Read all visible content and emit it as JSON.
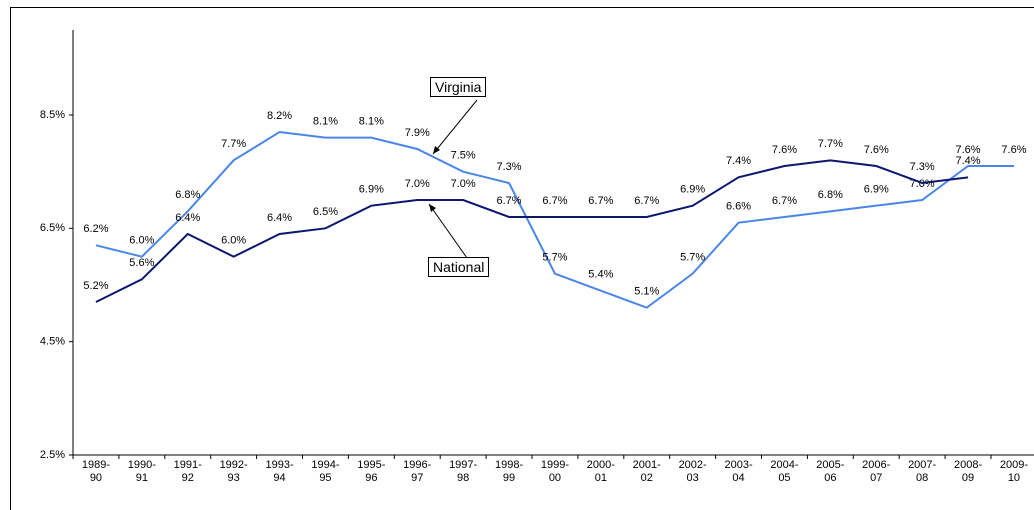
{
  "chart_data": {
    "type": "line",
    "categories": [
      "1989-90",
      "1990-91",
      "1991-92",
      "1992-93",
      "1993-94",
      "1994-95",
      "1995-96",
      "1996-97",
      "1997-98",
      "1998-99",
      "1999-00",
      "2000-01",
      "2001-02",
      "2002-03",
      "2003-04",
      "2004-05",
      "2005-06",
      "2006-07",
      "2007-08",
      "2008-09",
      "2009-10"
    ],
    "series": [
      {
        "name": "Virginia",
        "color": "#4a86e8",
        "values": [
          6.2,
          6.0,
          6.8,
          7.7,
          8.2,
          8.1,
          8.1,
          7.9,
          7.5,
          7.3,
          5.7,
          5.4,
          5.1,
          5.7,
          6.6,
          6.7,
          6.8,
          6.9,
          7.0,
          7.6,
          7.6
        ],
        "value_labels": [
          "6.2%",
          "6.0%",
          "6.8%",
          "7.7%",
          "8.2%",
          "8.1%",
          "8.1%",
          "7.9%",
          "7.5%",
          "7.3%",
          "5.7%",
          "5.4%",
          "5.1%",
          "5.7%",
          "6.6%",
          "6.7%",
          "6.8%",
          "6.9%",
          "7.0%",
          "7.6%",
          "7.6%"
        ]
      },
      {
        "name": "National",
        "color": "#0b1870",
        "values": [
          5.2,
          5.6,
          6.4,
          6.0,
          6.4,
          6.5,
          6.9,
          7.0,
          7.0,
          6.7,
          6.7,
          6.7,
          6.7,
          6.9,
          7.4,
          7.6,
          7.7,
          7.6,
          7.3,
          7.4,
          null
        ],
        "value_labels": [
          "5.2%",
          "5.6%",
          "6.4%",
          "6.0%",
          "6.4%",
          "6.5%",
          "6.9%",
          "7.0%",
          "7.0%",
          "6.7%",
          "6.7%",
          "6.7%",
          "6.7%",
          "6.9%",
          "7.4%",
          "7.6%",
          "7.7%",
          "7.6%",
          "7.3%",
          "7.4%",
          null
        ]
      }
    ],
    "ylim": [
      2.5,
      10
    ],
    "yticks": [
      {
        "value": 2.5,
        "label": "2.5%"
      },
      {
        "value": 4.5,
        "label": "4.5%"
      },
      {
        "value": 6.5,
        "label": "6.5%"
      },
      {
        "value": 8.5,
        "label": "8.5%"
      }
    ],
    "annotations": [
      "Virginia",
      "National"
    ],
    "grid": false
  }
}
